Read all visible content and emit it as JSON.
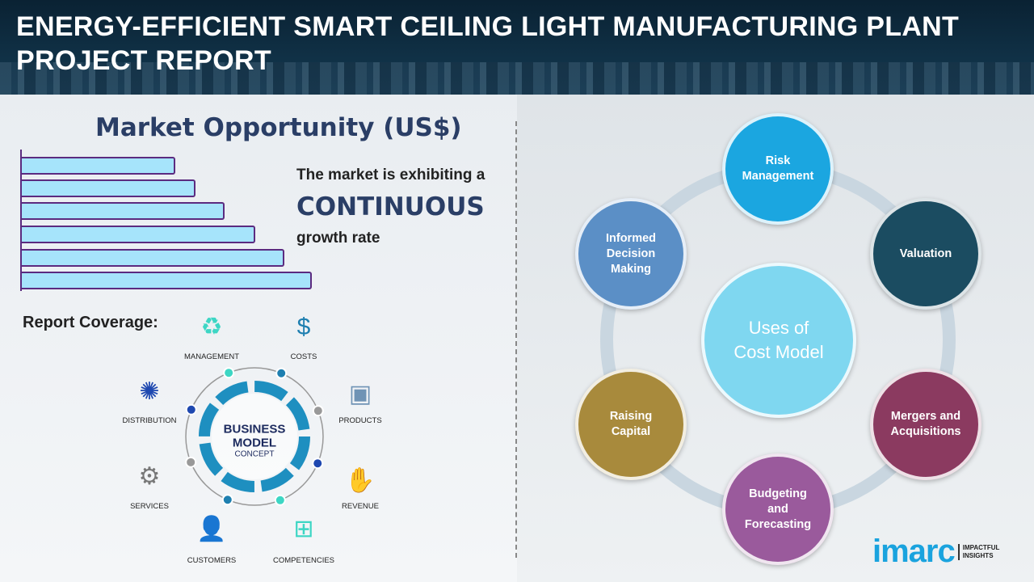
{
  "header": {
    "title": "ENERGY-EFFICIENT SMART CEILING LIGHT MANUFACTURING PLANT PROJECT REPORT"
  },
  "market": {
    "title": "Market Opportunity (US$)",
    "bar_count": 6,
    "trend": "increasing",
    "bar_fill": "#a6e4fb",
    "bar_border": "#5b2b80",
    "line1": "The market is exhibiting a",
    "line2": "CONTINUOUS",
    "line3": "growth rate"
  },
  "coverage": {
    "title": "Report Coverage:",
    "center_line1": "BUSINESS",
    "center_line2": "MODEL",
    "center_line3": "CONCEPT",
    "items": [
      {
        "label": "MANAGEMENT",
        "icon": "lightbulb-cycle-icon"
      },
      {
        "label": "COSTS",
        "icon": "money-bag-icon"
      },
      {
        "label": "PRODUCTS",
        "icon": "box-icon"
      },
      {
        "label": "REVENUE",
        "icon": "hand-coins-icon"
      },
      {
        "label": "COMPETENCIES",
        "icon": "hierarchy-icon"
      },
      {
        "label": "CUSTOMERS",
        "icon": "person-icon"
      },
      {
        "label": "SERVICES",
        "icon": "gears-icon"
      },
      {
        "label": "DISTRIBUTION",
        "icon": "network-icon"
      }
    ]
  },
  "uses": {
    "center": "Uses of Cost Model",
    "items": [
      {
        "label": "Risk Management",
        "color": "#1ba6e0"
      },
      {
        "label": "Valuation",
        "color": "#1b4c61"
      },
      {
        "label": "Mergers and Acquisitions",
        "color": "#8b3a60"
      },
      {
        "label": "Budgeting and Forecasting",
        "color": "#9a5a9c"
      },
      {
        "label": "Raising Capital",
        "color": "#a88a3c"
      },
      {
        "label": "Informed Decision Making",
        "color": "#5b8fc6"
      }
    ]
  },
  "logo": {
    "brand": "imarc",
    "tagline1": "IMPACTFUL",
    "tagline2": "INSIGHTS"
  }
}
